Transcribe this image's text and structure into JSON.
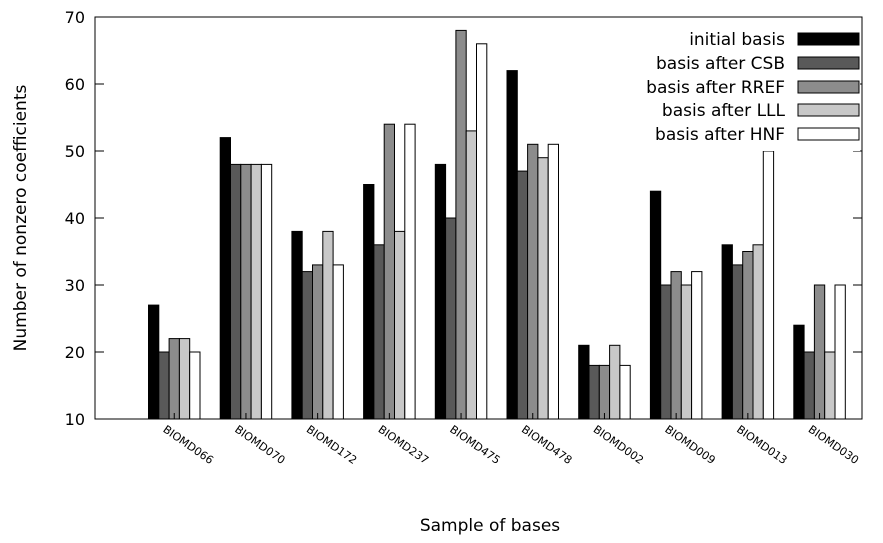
{
  "chart_data": {
    "type": "bar",
    "title": "",
    "xlabel": "Sample of bases",
    "ylabel": "Number of nonzero coefficients",
    "ylim": [
      10,
      70
    ],
    "yticks": [
      10,
      20,
      30,
      40,
      50,
      60,
      70
    ],
    "grid": false,
    "legend_position": "top-right",
    "categories": [
      "BIOMD066",
      "BIOMD070",
      "BIOMD172",
      "BIOMD237",
      "BIOMD475",
      "BIOMD478",
      "BIOMD002",
      "BIOMD009",
      "BIOMD013",
      "BIOMD030"
    ],
    "series": [
      {
        "name": "initial basis",
        "color": "#000000",
        "values": [
          27,
          52,
          38,
          45,
          48,
          62,
          21,
          44,
          36,
          24
        ]
      },
      {
        "name": "basis after CSB",
        "color": "#595959",
        "values": [
          20,
          48,
          32,
          36,
          40,
          47,
          18,
          30,
          33,
          20
        ]
      },
      {
        "name": "basis after RREF",
        "color": "#8c8c8c",
        "values": [
          22,
          48,
          33,
          54,
          68,
          51,
          18,
          32,
          35,
          30
        ]
      },
      {
        "name": "basis after LLL",
        "color": "#c8c8c8",
        "values": [
          22,
          48,
          38,
          38,
          53,
          49,
          21,
          30,
          36,
          20
        ]
      },
      {
        "name": "basis after HNF",
        "color": "#ffffff",
        "values": [
          20,
          48,
          33,
          54,
          66,
          51,
          18,
          32,
          50,
          30
        ]
      }
    ]
  }
}
